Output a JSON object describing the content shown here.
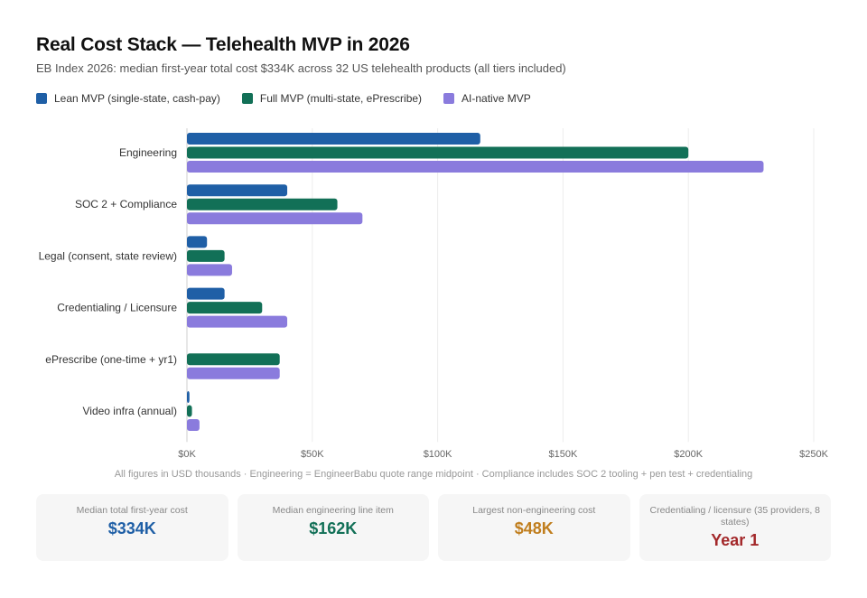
{
  "title": "Real Cost Stack — Telehealth MVP in 2026",
  "subtitle": "EB Index 2026: median first-year total cost $334K across 32 US telehealth products (all tiers included)",
  "footnote": "All figures in USD thousands · Engineering = EngineerBabu quote range midpoint · Compliance includes SOC 2 tooling + pen test + credentialing",
  "chart_data": {
    "type": "bar",
    "orientation": "horizontal",
    "title": "Real Cost Stack — Telehealth MVP in 2026",
    "categories": [
      "Engineering",
      "SOC 2 + Compliance",
      "Legal (consent, state review)",
      "Credentialing / Licensure",
      "ePrescribe (one-time + yr1)",
      "Video infra (annual)"
    ],
    "series": [
      {
        "name": "Lean MVP (single-state, cash-pay)",
        "color": "#1f5fa6",
        "values": [
          117,
          40,
          8,
          15,
          0,
          1
        ]
      },
      {
        "name": "Full MVP (multi-state, ePrescribe)",
        "color": "#127057",
        "values": [
          200,
          60,
          15,
          30,
          37,
          2
        ]
      },
      {
        "name": "AI-native MVP",
        "color": "#8a7bdd",
        "values": [
          230,
          70,
          18,
          40,
          37,
          5
        ]
      }
    ],
    "xlim": [
      0,
      250
    ],
    "xticks": [
      0,
      50,
      100,
      150,
      200,
      250
    ],
    "xtick_labels": [
      "$0K",
      "$50K",
      "$100K",
      "$150K",
      "$200K",
      "$250K"
    ],
    "grid": "vertical",
    "legend_position": "top-left"
  },
  "cards": [
    {
      "label": "Median total first-year cost",
      "value": "$334K",
      "color": "#1f5fa6"
    },
    {
      "label": "Median engineering line item",
      "value": "$162K",
      "color": "#127057"
    },
    {
      "label": "Largest non-engineering cost",
      "value": "$48K",
      "color": "#c07e1e"
    },
    {
      "label": "Credentialing / licensure (35 providers, 8 states)",
      "value": "Year 1",
      "color": "#a3282a"
    }
  ]
}
